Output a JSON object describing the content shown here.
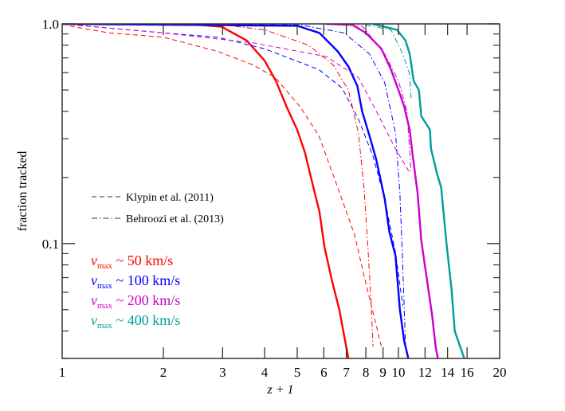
{
  "chart_data": {
    "type": "line",
    "xlabel": "z + 1",
    "ylabel": "fraction tracked",
    "xscale": "log",
    "yscale": "log",
    "xlim": [
      1,
      20
    ],
    "ylim": [
      0.03,
      1.0
    ],
    "grid": false,
    "x_ticks": [
      1,
      2,
      3,
      4,
      5,
      6,
      7,
      8,
      9,
      10,
      12,
      14,
      16,
      20
    ],
    "x_tick_labels": [
      "1",
      "2",
      "3",
      "4",
      "5",
      "6",
      "7",
      "8",
      "9",
      "10",
      "12",
      "14",
      "16",
      "20"
    ],
    "y_ticks": [
      0.1,
      1.0
    ],
    "y_tick_labels": [
      "0.1",
      "1.0"
    ],
    "y_minor_ticks": [
      0.03,
      0.04,
      0.05,
      0.06,
      0.07,
      0.08,
      0.09,
      0.2,
      0.3,
      0.4,
      0.5,
      0.6,
      0.7,
      0.8,
      0.9
    ],
    "style_legend": [
      {
        "label": "Klypin et al. (2011)",
        "dash": "dashed"
      },
      {
        "label": "Behroozi et al. (2013)",
        "dash": "dashdot"
      }
    ],
    "color_legend": [
      {
        "label_symbol": "v",
        "label_sub": "max",
        "label_rest": " ~ 50 km/s",
        "color": "#ff0000"
      },
      {
        "label_symbol": "v",
        "label_sub": "max",
        "label_rest": " ~ 100 km/s",
        "color": "#0000ff"
      },
      {
        "label_symbol": "v",
        "label_sub": "max",
        "label_rest": " ~ 200 km/s",
        "color": "#cc00cc"
      },
      {
        "label_symbol": "v",
        "label_sub": "max",
        "label_rest": " ~ 400 km/s",
        "color": "#009c9c"
      }
    ],
    "series": [
      {
        "group": "50 km/s",
        "style": "solid",
        "color": "#ff0000",
        "x": [
          1,
          2.38,
          2.98,
          3.54,
          4.0,
          4.32,
          4.65,
          5.0,
          5.27,
          5.54,
          5.82,
          6.03,
          6.34,
          6.67,
          6.92,
          7.1
        ],
        "y": [
          1.0,
          1.0,
          0.97,
          0.84,
          0.68,
          0.55,
          0.42,
          0.33,
          0.26,
          0.19,
          0.14,
          0.096,
          0.068,
          0.05,
          0.037,
          0.03
        ]
      },
      {
        "group": "100 km/s",
        "style": "solid",
        "color": "#0000ff",
        "x": [
          1,
          5.0,
          5.82,
          6.6,
          7.1,
          7.55,
          7.8,
          8.2,
          8.6,
          9.1,
          9.4,
          9.8,
          10.1,
          10.4,
          10.7
        ],
        "y": [
          1.0,
          0.98,
          0.91,
          0.75,
          0.64,
          0.52,
          0.4,
          0.31,
          0.24,
          0.16,
          0.113,
          0.088,
          0.05,
          0.036,
          0.03
        ]
      },
      {
        "group": "200 km/s",
        "style": "solid",
        "color": "#cc00cc",
        "x": [
          6.1,
          7.3,
          8.0,
          8.9,
          9.5,
          10.0,
          10.4,
          10.8,
          11.0,
          11.4,
          11.7,
          12.2,
          12.6,
          12.9,
          13.1
        ],
        "y": [
          1.0,
          0.99,
          0.91,
          0.77,
          0.62,
          0.5,
          0.42,
          0.33,
          0.26,
          0.17,
          0.103,
          0.066,
          0.047,
          0.034,
          0.03
        ]
      },
      {
        "group": "400 km/s",
        "style": "solid",
        "color": "#009c9c",
        "x": [
          8.4,
          9.9,
          10.5,
          10.8,
          11.1,
          11.5,
          11.7,
          12.4,
          12.5,
          13.0,
          13.4,
          13.9,
          14.4,
          14.7,
          15.7
        ],
        "y": [
          1.0,
          0.94,
          0.84,
          0.73,
          0.55,
          0.5,
          0.38,
          0.33,
          0.27,
          0.21,
          0.18,
          0.1,
          0.061,
          0.04,
          0.03
        ]
      },
      {
        "group": "50 km/s",
        "style": "dashed",
        "color": "#ff0000",
        "x": [
          1,
          1.08,
          1.38,
          2.0,
          2.9,
          3.7,
          4.3,
          5.1,
          5.8,
          6.6,
          7.4,
          8.0,
          8.9
        ],
        "y": [
          1.0,
          0.97,
          0.91,
          0.87,
          0.75,
          0.65,
          0.57,
          0.42,
          0.31,
          0.18,
          0.11,
          0.066,
          0.034
        ]
      },
      {
        "group": "100 km/s",
        "style": "dashed",
        "color": "#0000ff",
        "x": [
          1,
          2.0,
          2.9,
          4.0,
          5.8,
          6.8,
          7.6,
          8.4,
          9.1,
          9.8,
          10.3
        ],
        "y": [
          1.0,
          0.91,
          0.87,
          0.77,
          0.62,
          0.51,
          0.37,
          0.25,
          0.16,
          0.091,
          0.052
        ]
      },
      {
        "group": "200 km/s",
        "style": "dashed",
        "color": "#cc00cc",
        "x": [
          1,
          2.0,
          3.7,
          6.1,
          7.6,
          8.6,
          9.8,
          10.8
        ],
        "y": [
          1.0,
          0.91,
          0.82,
          0.71,
          0.57,
          0.4,
          0.27,
          0.21
        ]
      },
      {
        "group": "50 km/s",
        "style": "dashdot",
        "color": "#ff0000",
        "x": [
          1,
          3.0,
          4.0,
          5.4,
          6.4,
          7.1,
          7.6,
          7.9,
          8.1,
          8.3,
          8.4
        ],
        "y": [
          1.0,
          0.99,
          0.94,
          0.8,
          0.65,
          0.5,
          0.32,
          0.18,
          0.1,
          0.053,
          0.034
        ]
      },
      {
        "group": "100 km/s",
        "style": "dashdot",
        "color": "#0000ff",
        "x": [
          1,
          5.1,
          6.9,
          8.2,
          9.1,
          9.8,
          10.1,
          10.3,
          10.5
        ],
        "y": [
          1.0,
          0.99,
          0.91,
          0.73,
          0.54,
          0.32,
          0.17,
          0.079,
          0.034
        ]
      },
      {
        "group": "200 km/s",
        "style": "dashdot",
        "color": "#cc00cc",
        "x": [
          6.1,
          7.8,
          9.1,
          10.0,
          10.6,
          10.9
        ],
        "y": [
          1.0,
          0.98,
          0.73,
          0.55,
          0.4,
          0.21
        ]
      },
      {
        "group": "400 km/s",
        "style": "dashdot",
        "color": "#009c9c",
        "x": [
          8.0,
          9.5,
          10.3,
          10.8,
          10.9
        ],
        "y": [
          0.99,
          0.94,
          0.73,
          0.59,
          0.46
        ]
      }
    ]
  }
}
